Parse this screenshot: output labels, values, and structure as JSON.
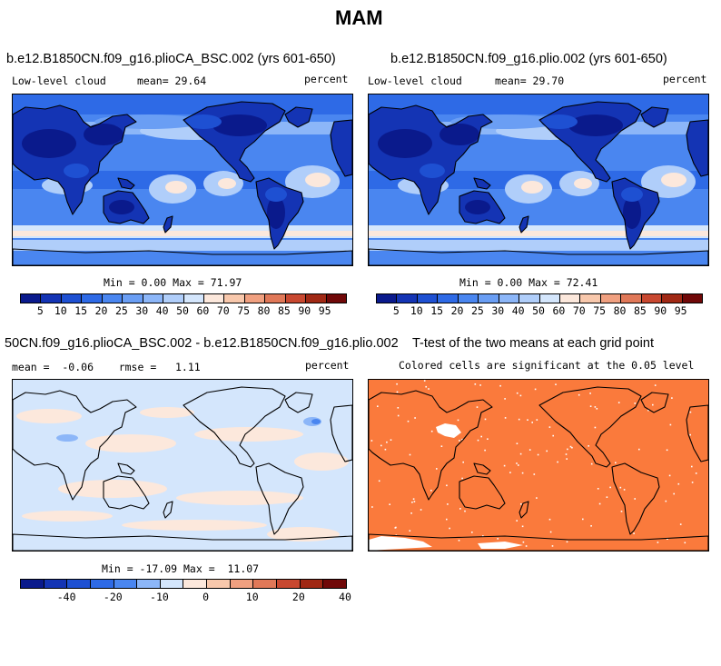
{
  "figure": {
    "title": "MAM"
  },
  "panels": [
    {
      "title": "b.e12.B1850CN.f09_g16.plioCA_BSC.002 (yrs 601-650)",
      "left_label": "Low-level cloud",
      "center_label": "mean=  29.64",
      "right_label": "percent",
      "stats": "Min =   0.00 Max =  71.97",
      "colorbar_labels": [
        "5",
        "10",
        "15",
        "20",
        "25",
        "30",
        "40",
        "50",
        "60",
        "70",
        "75",
        "80",
        "85",
        "90",
        "95"
      ]
    },
    {
      "title": "b.e12.B1850CN.f09_g16.plio.002 (yrs 601-650)",
      "left_label": "Low-level cloud",
      "center_label": "mean=  29.70",
      "right_label": "percent",
      "stats": "Min =   0.00 Max =  72.41",
      "colorbar_labels": [
        "5",
        "10",
        "15",
        "20",
        "25",
        "30",
        "40",
        "50",
        "60",
        "70",
        "75",
        "80",
        "85",
        "90",
        "95"
      ]
    },
    {
      "title": "50CN.f09_g16.plioCA_BSC.002 - b.e12.B1850CN.f09_g16.plio.002",
      "left_label": "mean =  -0.06    rmse =   1.11",
      "right_label": "percent",
      "stats": "Min = -17.09 Max =  11.07",
      "colorbar_labels": [
        "-40",
        "-20",
        "-10",
        "0",
        "10",
        "20",
        "40"
      ]
    },
    {
      "title": "T-test of the two means at each grid point",
      "subtitle": "Colored cells are significant at the 0.05 level"
    }
  ],
  "colors": {
    "abs_scale": [
      "#0a1a8c",
      "#1434b4",
      "#1e50d2",
      "#2e6ae6",
      "#4a86f0",
      "#6a9ef4",
      "#8cb6f8",
      "#b0cefa",
      "#d4e6fc",
      "#fce8dc",
      "#f8c8ac",
      "#f0a080",
      "#e07858",
      "#c84830",
      "#a02814",
      "#700808"
    ],
    "diff_scale": [
      "#0a1a8c",
      "#1434b4",
      "#1e50d2",
      "#2e6ae6",
      "#4a86f0",
      "#8cb6f8",
      "#d4e6fc",
      "#fce8dc",
      "#f8c8ac",
      "#f0a080",
      "#e07858",
      "#c84830",
      "#a02814",
      "#700808"
    ],
    "ttest_fill": "#fa7a3c"
  }
}
